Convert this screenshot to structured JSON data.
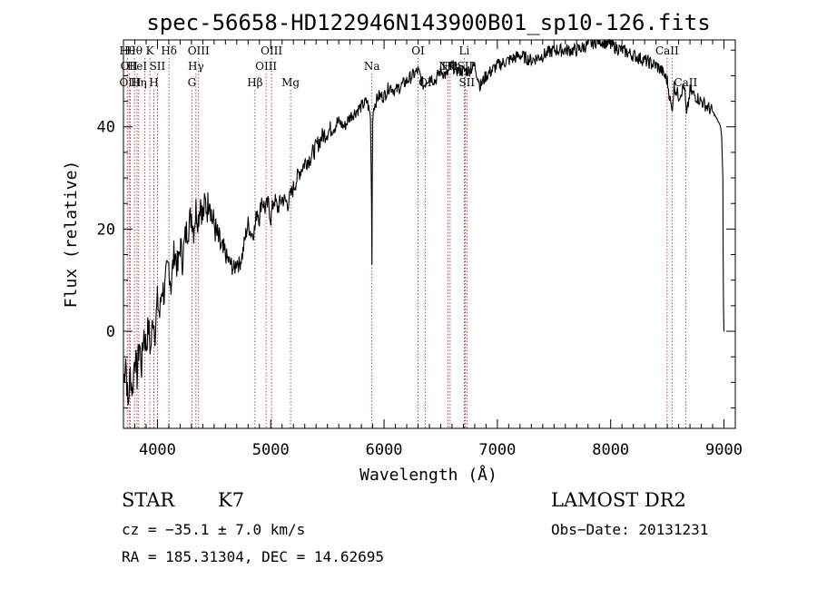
{
  "chart_data": {
    "type": "line",
    "title": "spec-56658-HD122946N143900B01_sp10-126.fits",
    "xlabel": "Wavelength (Å)",
    "ylabel": "Flux (relative)",
    "xlim": [
      3700,
      9100
    ],
    "ylim": [
      -19,
      57
    ],
    "x_ticks": [
      4000,
      5000,
      6000,
      7000,
      8000,
      9000
    ],
    "y_ticks": [
      0,
      20,
      40
    ],
    "grid": false,
    "series": [
      {
        "x": [
          3700,
          3720,
          3740,
          3760,
          3780,
          3800,
          3820,
          3840,
          3860,
          3880,
          3900,
          3920,
          3940,
          3960,
          3980,
          4000,
          4020,
          4040,
          4060,
          4080,
          4100,
          4120,
          4150,
          4180,
          4200,
          4220,
          4250,
          4280,
          4300,
          4320,
          4340,
          4360,
          4380,
          4400,
          4420,
          4440,
          4460,
          4480,
          4500,
          4520,
          4550,
          4580,
          4600,
          4620,
          4650,
          4680,
          4700,
          4720,
          4750,
          4780,
          4800,
          4830,
          4860,
          4880,
          4900,
          4920,
          4950,
          4980,
          5000,
          5030,
          5060,
          5100,
          5150,
          5200,
          5250,
          5300,
          5350,
          5400,
          5450,
          5500,
          5550,
          5600,
          5650,
          5700,
          5750,
          5800,
          5850,
          5880,
          5890,
          5893,
          5896,
          5900,
          5910,
          5950,
          6000,
          6050,
          6100,
          6150,
          6200,
          6250,
          6300,
          6350,
          6400,
          6450,
          6500,
          6550,
          6600,
          6650,
          6700,
          6750,
          6800,
          6850,
          6900,
          6950,
          7000,
          7100,
          7200,
          7300,
          7400,
          7500,
          7600,
          7700,
          7800,
          7900,
          8000,
          8100,
          8200,
          8300,
          8400,
          8450,
          8500,
          8540,
          8560,
          8600,
          8650,
          8670,
          8700,
          8750,
          8800,
          8850,
          8900,
          8950,
          8970,
          8980,
          8990,
          8993,
          8996,
          9000,
          9005
        ],
        "values": [
          -10,
          -5,
          -15,
          -8,
          -12,
          -4,
          -9,
          -2,
          -7,
          0,
          -3,
          1,
          -4,
          3,
          0,
          6,
          3,
          9,
          7,
          11,
          13,
          9,
          16,
          12,
          17,
          14,
          19,
          21,
          23,
          20,
          24,
          22,
          26,
          22,
          25,
          24,
          27,
          22,
          21,
          19,
          17,
          15,
          15,
          14,
          13,
          12,
          14,
          13,
          15,
          19,
          21,
          19,
          20,
          24,
          22,
          26,
          24,
          25,
          22,
          26,
          24,
          26,
          25,
          28,
          31,
          33,
          34,
          36,
          38,
          39,
          40,
          41,
          40,
          42,
          43,
          44,
          45,
          42,
          25,
          13,
          30,
          42,
          44,
          46,
          46,
          48,
          47,
          48,
          49,
          50,
          51,
          48,
          50,
          49,
          51,
          50,
          52,
          51,
          51,
          51,
          52,
          48,
          50,
          51,
          52,
          53,
          54,
          53,
          54,
          55,
          55,
          55,
          56,
          57,
          56,
          55,
          54,
          53,
          52,
          51,
          49,
          43,
          48,
          46,
          48,
          42,
          47,
          46,
          45,
          44,
          43,
          41,
          40,
          38,
          30,
          15,
          5,
          0,
          0
        ]
      }
    ],
    "line_markers": [
      {
        "x": 3734,
        "row": 0,
        "label": "Hθ"
      },
      {
        "x": 3750,
        "row": 1,
        "label": "OII"
      },
      {
        "x": 3760,
        "row": 2,
        "label": "OIII"
      },
      {
        "x": 3797,
        "row": 0,
        "label": "Hθ"
      },
      {
        "x": 3820,
        "row": 1,
        "label": "HeI"
      },
      {
        "x": 3835,
        "row": 2,
        "label": "Hη"
      },
      {
        "x": 3889,
        "row": 0,
        "label": ""
      },
      {
        "x": 3933,
        "row": 0,
        "label": "K"
      },
      {
        "x": 3968,
        "row": 2,
        "label": "H"
      },
      {
        "x": 4000,
        "row": 1,
        "label": "SII"
      },
      {
        "x": 4102,
        "row": 0,
        "label": "Hδ"
      },
      {
        "x": 4304,
        "row": 2,
        "label": "G"
      },
      {
        "x": 4340,
        "row": 1,
        "label": "Hγ"
      },
      {
        "x": 4363,
        "row": 0,
        "label": "OIII"
      },
      {
        "x": 4861,
        "row": 2,
        "label": "Hβ"
      },
      {
        "x": 4959,
        "row": 1,
        "label": "OIII"
      },
      {
        "x": 5007,
        "row": 0,
        "label": "OIII"
      },
      {
        "x": 5175,
        "row": 2,
        "label": "Mg"
      },
      {
        "x": 5893,
        "row": 1,
        "label": "Na"
      },
      {
        "x": 6300,
        "row": 0,
        "label": "OI"
      },
      {
        "x": 6363,
        "row": 2,
        "label": "OI"
      },
      {
        "x": 6563,
        "row": 1,
        "label": "NII"
      },
      {
        "x": 6583,
        "row": 1,
        "label": "Hα"
      },
      {
        "x": 6708,
        "row": 0,
        "label": "Li"
      },
      {
        "x": 6716,
        "row": 1,
        "label": "SII"
      },
      {
        "x": 6731,
        "row": 2,
        "label": "SII"
      },
      {
        "x": 8498,
        "row": 0,
        "label": "CaII"
      },
      {
        "x": 8542,
        "row": 0,
        "label": ""
      },
      {
        "x": 8662,
        "row": 2,
        "label": "CaII"
      }
    ]
  },
  "info": {
    "object_class": "STAR",
    "subclass": "K7",
    "survey": "LAMOST DR2",
    "cz": "cz = −35.1 ± 7.0 km/s",
    "obs_date": "Obs−Date: 20131231",
    "radec": "RA = 185.31304, DEC =  14.62695"
  },
  "colors": {
    "spectrum": "#000000",
    "marker_lines": "#b03030"
  }
}
